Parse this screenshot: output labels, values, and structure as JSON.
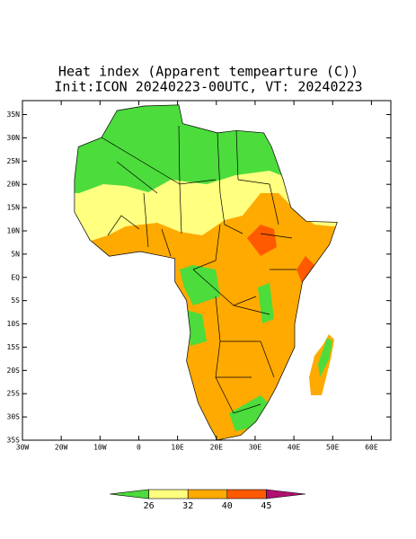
{
  "title": "Heat index (Apparent tempearture (C))",
  "subtitle": "Init:ICON 20240223-00UTC, VT: 20240223",
  "map": {
    "lon_range": [
      -30,
      65
    ],
    "lat_range": [
      -35,
      38
    ],
    "lat_ticks": [
      {
        "value": 35,
        "label": "35N"
      },
      {
        "value": 30,
        "label": "30N"
      },
      {
        "value": 25,
        "label": "25N"
      },
      {
        "value": 20,
        "label": "20N"
      },
      {
        "value": 15,
        "label": "15N"
      },
      {
        "value": 10,
        "label": "10N"
      },
      {
        "value": 5,
        "label": "5N"
      },
      {
        "value": 0,
        "label": "EQ"
      },
      {
        "value": -5,
        "label": "5S"
      },
      {
        "value": -10,
        "label": "10S"
      },
      {
        "value": -15,
        "label": "15S"
      },
      {
        "value": -20,
        "label": "20S"
      },
      {
        "value": -25,
        "label": "25S"
      },
      {
        "value": -30,
        "label": "30S"
      },
      {
        "value": -35,
        "label": "35S"
      }
    ],
    "lon_ticks": [
      {
        "value": -30,
        "label": "30W"
      },
      {
        "value": -20,
        "label": "20W"
      },
      {
        "value": -10,
        "label": "10W"
      },
      0,
      {
        "value": 10,
        "label": "10E"
      },
      {
        "value": 20,
        "label": "20E"
      },
      {
        "value": 30,
        "label": "30E"
      },
      {
        "value": 40,
        "label": "40E"
      },
      {
        "value": 50,
        "label": "50E"
      },
      {
        "value": 60,
        "label": "60E"
      }
    ]
  },
  "colorbar": {
    "levels": [
      26,
      32,
      40,
      45
    ],
    "colors": [
      "#4cdc3c",
      "#ffff80",
      "#ffaa00",
      "#ff5a00",
      "#b01070"
    ]
  }
}
